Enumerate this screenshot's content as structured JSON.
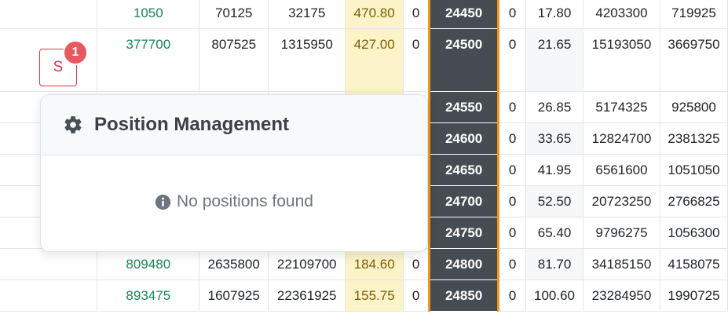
{
  "option_chain": {
    "rows": [
      {
        "call_oi": "1050",
        "c2": "70125",
        "c3": "32175",
        "call_ltp": "470.80",
        "c5": "0",
        "strike": "24450",
        "c7": "0",
        "put_ltp": "17.80",
        "p2": "4203300",
        "p3": "719925"
      },
      {
        "call_oi": "377700",
        "c2": "807525",
        "c3": "1315950",
        "call_ltp": "427.00",
        "c5": "0",
        "strike": "24500",
        "c7": "0",
        "put_ltp": "21.65",
        "p2": "15193050",
        "p3": "3669750"
      },
      {
        "call_oi": "",
        "c2": "",
        "c3": "",
        "call_ltp": "",
        "c5": "",
        "strike": "24550",
        "c7": "0",
        "put_ltp": "26.85",
        "p2": "5174325",
        "p3": "925800"
      },
      {
        "call_oi": "",
        "c2": "",
        "c3": "",
        "call_ltp": "",
        "c5": "",
        "strike": "24600",
        "c7": "0",
        "put_ltp": "33.65",
        "p2": "12824700",
        "p3": "2381325"
      },
      {
        "call_oi": "",
        "c2": "",
        "c3": "",
        "call_ltp": "",
        "c5": "",
        "strike": "24650",
        "c7": "0",
        "put_ltp": "41.95",
        "p2": "6561600",
        "p3": "1051050"
      },
      {
        "call_oi": "",
        "c2": "",
        "c3": "",
        "call_ltp": "",
        "c5": "",
        "strike": "24700",
        "c7": "0",
        "put_ltp": "52.50",
        "p2": "20723250",
        "p3": "2766825"
      },
      {
        "call_oi": "",
        "c2": "",
        "c3": "",
        "call_ltp": "",
        "c5": "",
        "strike": "24750",
        "c7": "0",
        "put_ltp": "65.40",
        "p2": "9796275",
        "p3": "1056300"
      },
      {
        "call_oi": "809480",
        "c2": "2635800",
        "c3": "22109700",
        "call_ltp": "184.60",
        "c5": "0",
        "strike": "24800",
        "c7": "0",
        "put_ltp": "81.70",
        "p2": "34185150",
        "p3": "4158075"
      },
      {
        "call_oi": "893475",
        "c2": "1607925",
        "c3": "22361925",
        "call_ltp": "155.75",
        "c5": "0",
        "strike": "24850",
        "c7": "0",
        "put_ltp": "100.60",
        "p2": "23284950",
        "p3": "1990725"
      }
    ]
  },
  "s_button": {
    "label": "S",
    "badge": "1"
  },
  "position_panel": {
    "title": "Position Management",
    "title_icon": "gear-icon",
    "empty_message": "No positions found",
    "empty_icon": "info-icon"
  },
  "colors": {
    "strike_bg": "#474c53",
    "strike_border": "#f0961e",
    "call_ltp_bg": "#fdf3c8",
    "oi_green": "#198754",
    "badge_red": "#e8585f",
    "s_button_red": "#dc3545"
  }
}
